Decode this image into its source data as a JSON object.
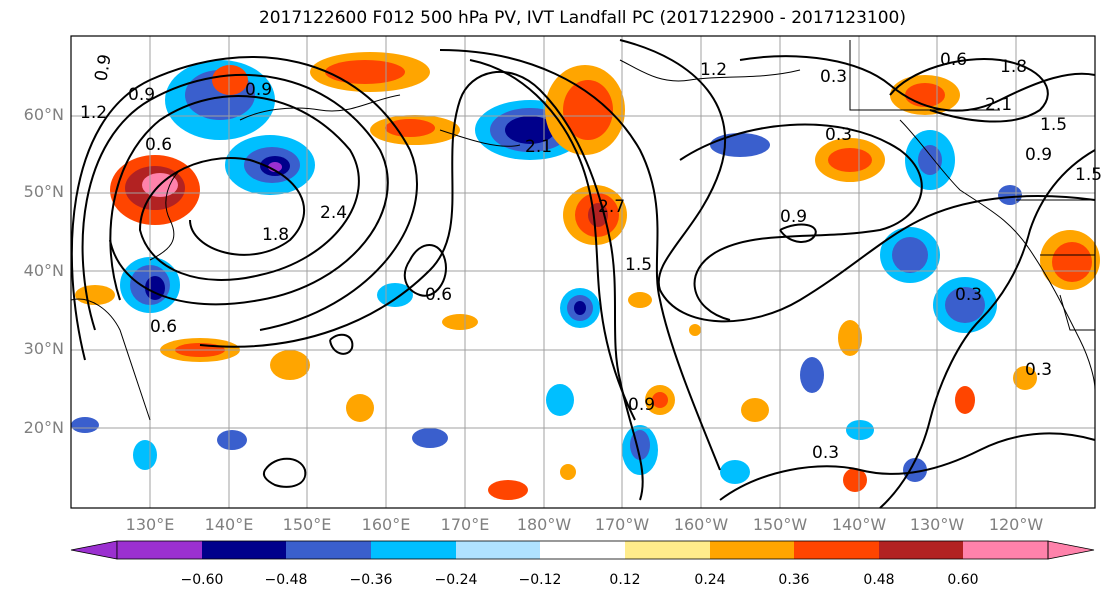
{
  "title": "2017122600 F012 500 hPa PV, IVT Landfall PC (2017122900 - 2017123100)",
  "latitude_labels": [
    "60°N",
    "50°N",
    "40°N",
    "30°N",
    "20°N"
  ],
  "longitude_labels": [
    "130°E",
    "140°E",
    "150°E",
    "160°E",
    "170°E",
    "180°W",
    "170°W",
    "160°W",
    "150°W",
    "140°W",
    "130°W",
    "120°W"
  ],
  "contour_labels": [
    "0.9",
    "0.9",
    "1.2",
    "0.6",
    "0.9",
    "1.2",
    "0.3",
    "0.6",
    "1.8",
    "2.1",
    "1.5",
    "0.3",
    "0.9",
    "1.5",
    "2.1",
    "1.8",
    "2.4",
    "2.7",
    "1.5",
    "0.6",
    "0.9",
    "0.9",
    "0.3",
    "0.3",
    "0.3",
    "0.6"
  ],
  "colorbar": {
    "tick_labels": [
      "−0.60",
      "−0.48",
      "−0.36",
      "−0.24",
      "−0.12",
      "0.12",
      "0.24",
      "0.36",
      "0.48",
      "0.60"
    ],
    "colors": [
      "#9b30d0",
      "#00008b",
      "#3a5fcd",
      "#00bfff",
      "#b0e2ff",
      "#ffffff",
      "#ffec8b",
      "#ffa500",
      "#ff4500",
      "#b22222",
      "#ff82ab"
    ]
  },
  "colors": {
    "contour": "#000000",
    "gridline": "#a0a0a0",
    "coastline": "#000000"
  }
}
